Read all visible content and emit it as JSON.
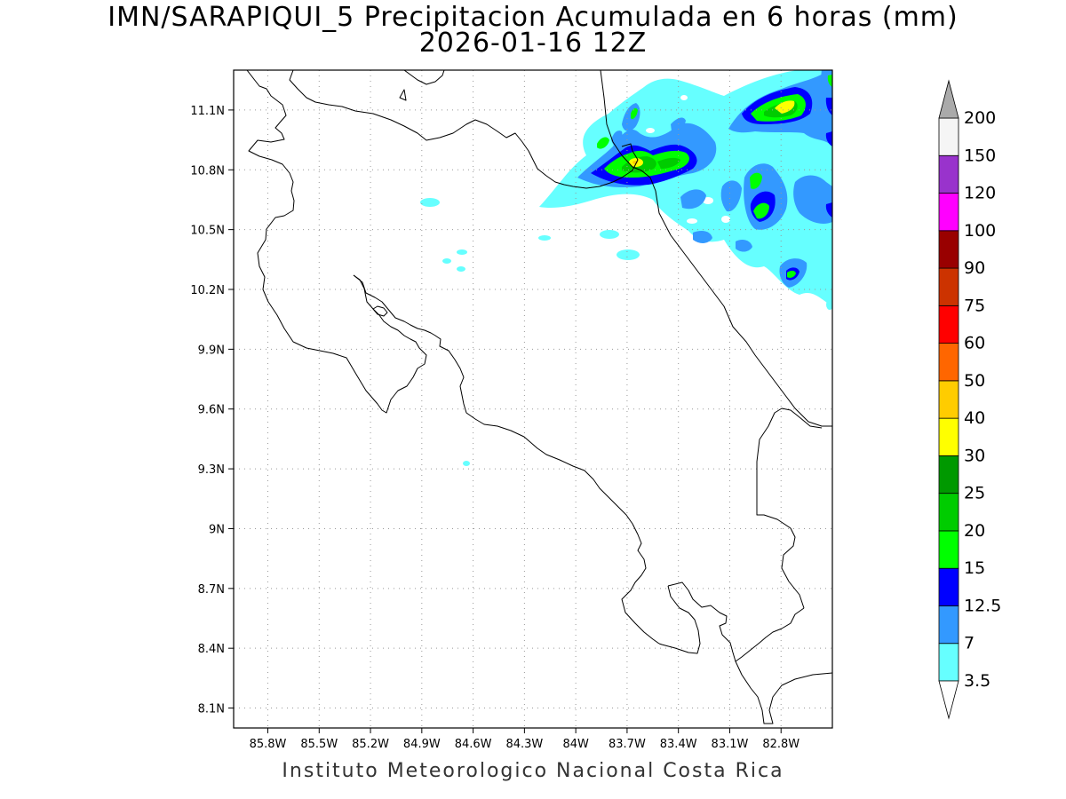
{
  "title": {
    "line1": "IMN/SARAPIQUI_5 Precipitacion Acumulada en 6 horas (mm)",
    "line2": "2026-01-16 12Z"
  },
  "footer": "Instituto Meteorologico Nacional Costa Rica",
  "map": {
    "lon_range": [
      -86.0,
      -82.5
    ],
    "lat_range": [
      8.0,
      11.3
    ],
    "x_ticks": [
      {
        "value": -85.8,
        "label": "85.8W"
      },
      {
        "value": -85.5,
        "label": "85.5W"
      },
      {
        "value": -85.2,
        "label": "85.2W"
      },
      {
        "value": -84.9,
        "label": "84.9W"
      },
      {
        "value": -84.6,
        "label": "84.6W"
      },
      {
        "value": -84.3,
        "label": "84.3W"
      },
      {
        "value": -84.0,
        "label": "84W"
      },
      {
        "value": -83.7,
        "label": "83.7W"
      },
      {
        "value": -83.4,
        "label": "83.4W"
      },
      {
        "value": -83.1,
        "label": "83.1W"
      },
      {
        "value": -82.8,
        "label": "82.8W"
      }
    ],
    "y_ticks": [
      {
        "value": 11.1,
        "label": "11.1N"
      },
      {
        "value": 10.8,
        "label": "10.8N"
      },
      {
        "value": 10.5,
        "label": "10.5N"
      },
      {
        "value": 10.2,
        "label": "10.2N"
      },
      {
        "value": 9.9,
        "label": "9.9N"
      },
      {
        "value": 9.6,
        "label": "9.6N"
      },
      {
        "value": 9.3,
        "label": "9.3N"
      },
      {
        "value": 9.0,
        "label": "9N"
      },
      {
        "value": 8.7,
        "label": "8.7N"
      },
      {
        "value": 8.4,
        "label": "8.4N"
      },
      {
        "value": 8.1,
        "label": "8.1N"
      }
    ],
    "grid": "dotted"
  },
  "legend": {
    "labels": [
      "3.5",
      "7",
      "12.5",
      "15",
      "20",
      "25",
      "30",
      "40",
      "50",
      "60",
      "75",
      "90",
      "100",
      "120",
      "150",
      "200"
    ],
    "colors": [
      "#66ffff",
      "#3399ff",
      "#0000ff",
      "#00ff00",
      "#00cc00",
      "#009900",
      "#ffff00",
      "#ffcc00",
      "#ff6600",
      "#ff0000",
      "#cc3300",
      "#990000",
      "#ff00ff",
      "#9933cc",
      "#f5f5f5"
    ],
    "low_arrow_color": "#ffffff",
    "high_arrow_color": "#aaaaaa"
  }
}
